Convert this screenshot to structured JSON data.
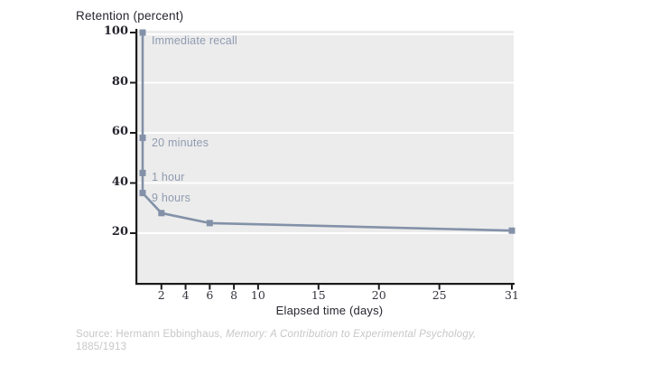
{
  "title": "Retention (percent)",
  "x_axis": {
    "label": "Elapsed time (days)",
    "ticks": [
      2,
      4,
      6,
      8,
      10,
      15,
      20,
      25,
      31
    ],
    "min": 0,
    "max": 31
  },
  "y_axis": {
    "ticks": [
      100,
      80,
      60,
      40,
      20
    ],
    "min": 0,
    "max": 100
  },
  "source": {
    "prefix": "Source: Hermann Ebbinghaus, ",
    "work_italic": "Memory: A Contribution to Experimental Psychology,",
    "line2": "1885/1913"
  },
  "chart_data": {
    "type": "line",
    "title": "Retention (percent)",
    "xlabel": "Elapsed time (days)",
    "ylabel": "Retention (percent)",
    "xlim": [
      0,
      31
    ],
    "ylim": [
      0,
      100
    ],
    "grid": "horizontal white gridlines at every 20 units",
    "legend": "none",
    "marker": "square",
    "points": [
      {
        "label": "Immediate recall",
        "time_days": 0,
        "retention": 100,
        "annotated": true
      },
      {
        "label": "20 minutes",
        "time_days": 0.014,
        "retention": 58,
        "annotated": true
      },
      {
        "label": "1 hour",
        "time_days": 0.042,
        "retention": 44,
        "annotated": true
      },
      {
        "label": "9 hours",
        "time_days": 0.375,
        "retention": 36,
        "annotated": true
      },
      {
        "label": "2 days",
        "time_days": 2,
        "retention": 28,
        "annotated": false
      },
      {
        "label": "6 days",
        "time_days": 6,
        "retention": 24,
        "annotated": false
      },
      {
        "label": "31 days",
        "time_days": 31,
        "retention": 21,
        "annotated": false
      }
    ],
    "colors": {
      "curve": "#8391a8",
      "marker": "#8391a8",
      "annotation_text": "#8f9bb0",
      "plot_background": "#ececec",
      "gridline": "#ffffff",
      "axis": "#1b1b1b",
      "dark_text": "#26262e",
      "tick_text": "#24242e",
      "source_text": "#c7c7c7"
    }
  }
}
